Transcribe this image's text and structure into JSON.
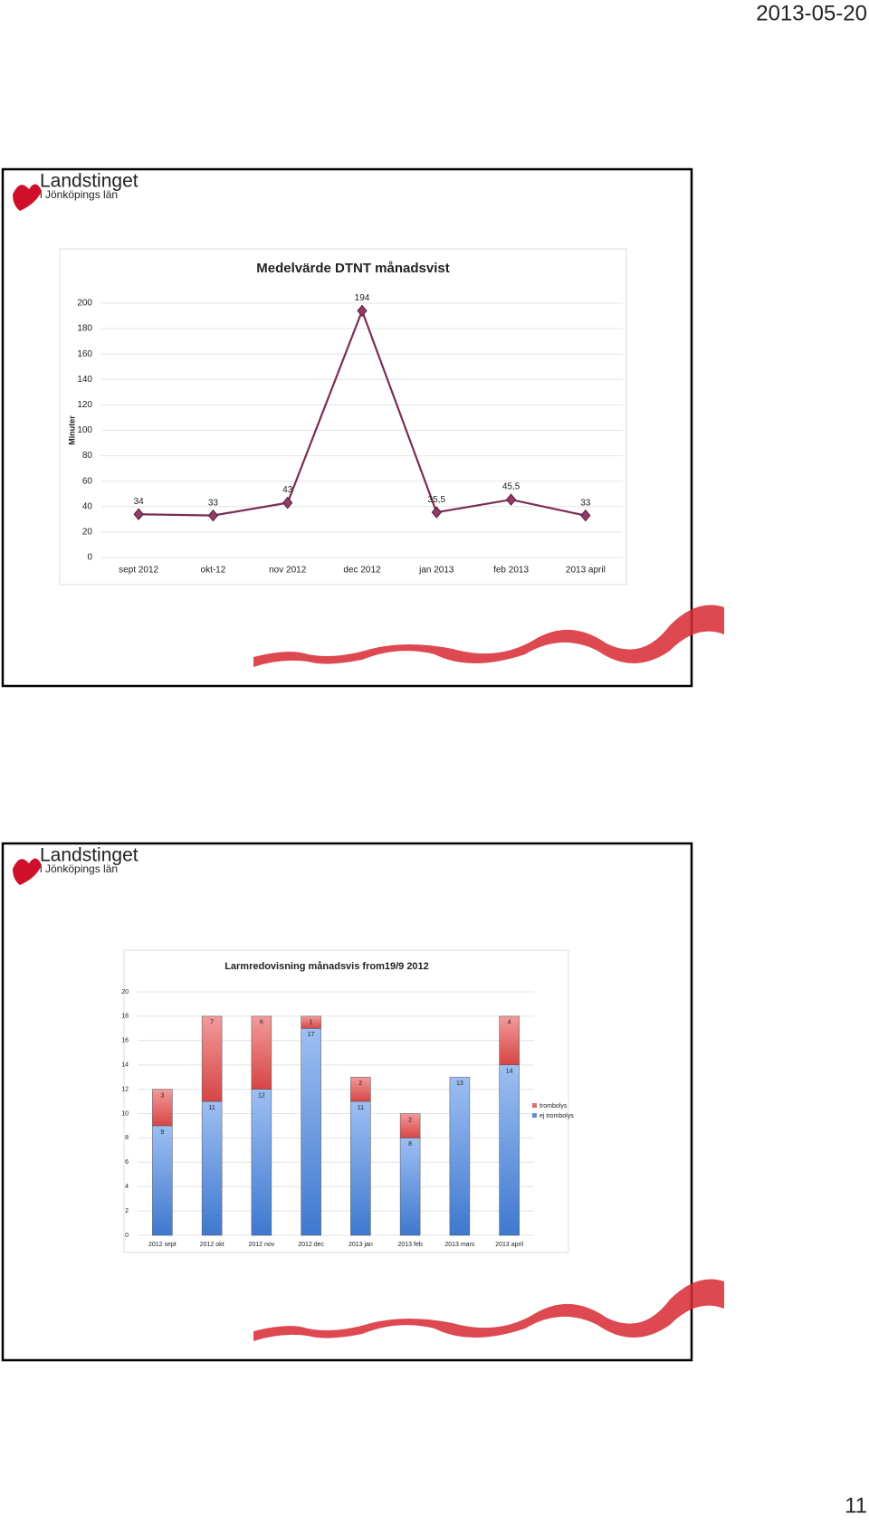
{
  "header": {
    "date": "2013-05-20"
  },
  "page_number": "11",
  "slides": [
    {
      "logo_name": "Landstinget",
      "logo_sub": "i Jönköpings län"
    },
    {
      "logo_name": "Landstinget",
      "logo_sub": "i Jönköpings län"
    }
  ],
  "chart_data": [
    {
      "type": "line",
      "title": "Medelvärde DTNT månadsvist",
      "y_label": "Minuter",
      "categories": [
        "sept 2012",
        "okt-12",
        "nov 2012",
        "dec 2012",
        "jan 2013",
        "feb 2013",
        "2013 april"
      ],
      "values": [
        34,
        33,
        43,
        194,
        35.5,
        45.5,
        33
      ],
      "value_labels": [
        "34",
        "33",
        "43",
        "194",
        "35,5",
        "45,5",
        "33"
      ],
      "color": "#7a2d55",
      "ylim": [
        0,
        200
      ],
      "yticks": [
        0,
        20,
        40,
        60,
        80,
        100,
        120,
        140,
        160,
        180,
        200
      ],
      "grid": true
    },
    {
      "type": "stacked_bar",
      "title": "Larmredovisning månadsvis from19/9 2012",
      "categories": [
        "2012 sept",
        "2012 okt",
        "2012 nov",
        "2012 dec",
        "2013 jan",
        "2013 feb",
        "2013 mars",
        "2013 april"
      ],
      "series": [
        {
          "name": "ej trombolys",
          "color": "#5b8fdc",
          "values": [
            9,
            11,
            12,
            17,
            11,
            8,
            13,
            14
          ]
        },
        {
          "name": "trombolys",
          "color": "#e26b6b",
          "values": [
            3,
            7,
            6,
            1,
            2,
            2,
            null,
            4
          ]
        }
      ],
      "ylim": [
        0,
        20
      ],
      "yticks": [
        0,
        2,
        4,
        6,
        8,
        10,
        12,
        14,
        16,
        18,
        20
      ],
      "grid": true,
      "legend": "right"
    }
  ]
}
